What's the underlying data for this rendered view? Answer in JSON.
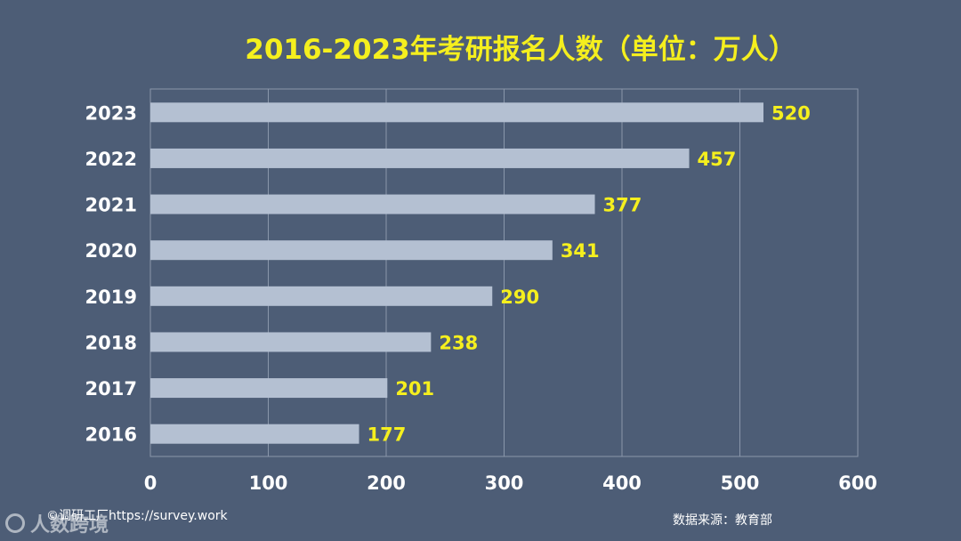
{
  "chart_data": {
    "type": "bar",
    "orientation": "horizontal",
    "title": "2016-2023年考研报名人数（单位：万人）",
    "categories": [
      "2023",
      "2022",
      "2021",
      "2020",
      "2019",
      "2018",
      "2017",
      "2016"
    ],
    "values": [
      520,
      457,
      377,
      341,
      290,
      238,
      201,
      177
    ],
    "xlim": [
      0,
      600
    ],
    "xticks": [
      0,
      100,
      200,
      300,
      400,
      500,
      600
    ],
    "grid": true,
    "colors": {
      "bar": "#b4c0d2",
      "value_label": "#f5ef1e",
      "title": "#f5ef1e",
      "tick_label": "#ffffff",
      "grid": "#8a97ab",
      "background": "#4d5d76"
    }
  },
  "footer": {
    "credit": "©调研工厂https://survey.work",
    "source": "数据来源：教育部"
  },
  "watermark": {
    "text": "人数跨境"
  }
}
